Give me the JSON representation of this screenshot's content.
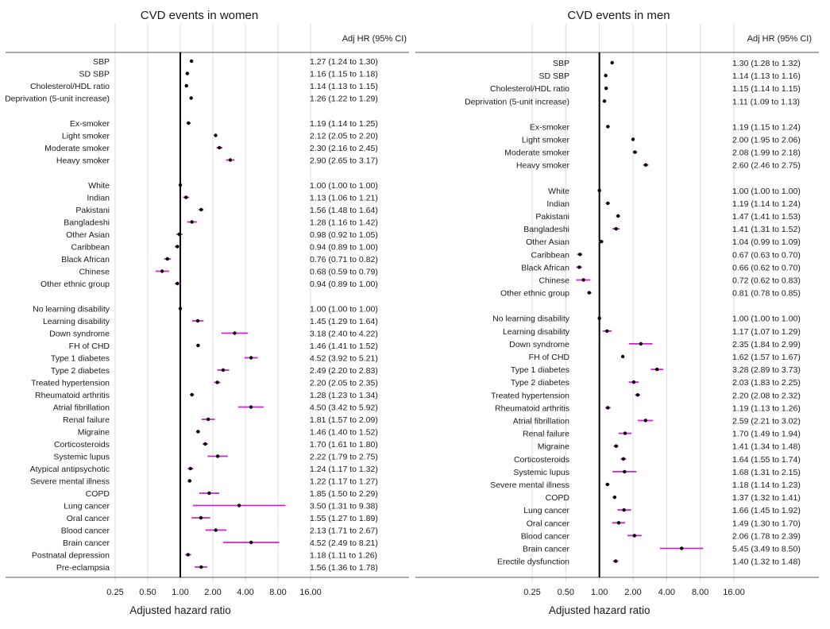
{
  "colors": {
    "ci": "#d21fd2",
    "point": "#000000",
    "reference": "#000000",
    "grid": "#dcdcdc",
    "frame": "#555555"
  },
  "chart_data": [
    {
      "type": "forest",
      "title": "CVD events in women",
      "ci_header": "Adj HR (95% CI)",
      "xlabel": "Adjusted hazard ratio",
      "x_scale": "log2",
      "xlim": [
        0.25,
        16
      ],
      "xticks": [
        "0.25",
        "0.50",
        "1.00",
        "2.00",
        "4.00",
        "8.00",
        "16.00"
      ],
      "xtick_values": [
        0.25,
        0.5,
        1,
        2,
        4,
        8,
        16
      ],
      "reference_line": 1,
      "grid": "vertical",
      "groups": [
        {
          "rows": [
            {
              "label": "SBP",
              "hr": 1.27,
              "lo": 1.24,
              "hi": 1.3,
              "ci_text": "1.27 (1.24 to 1.30)"
            },
            {
              "label": "SD SBP",
              "hr": 1.16,
              "lo": 1.15,
              "hi": 1.18,
              "ci_text": "1.16 (1.15 to 1.18)"
            },
            {
              "label": "Cholesterol/HDL ratio",
              "hr": 1.14,
              "lo": 1.13,
              "hi": 1.15,
              "ci_text": "1.14 (1.13 to 1.15)"
            },
            {
              "label": "Deprivation (5-unit increase)",
              "hr": 1.26,
              "lo": 1.22,
              "hi": 1.29,
              "ci_text": "1.26 (1.22 to 1.29)"
            }
          ]
        },
        {
          "rows": [
            {
              "label": "Ex-smoker",
              "hr": 1.19,
              "lo": 1.14,
              "hi": 1.25,
              "ci_text": "1.19 (1.14 to 1.25)"
            },
            {
              "label": "Light smoker",
              "hr": 2.12,
              "lo": 2.05,
              "hi": 2.2,
              "ci_text": "2.12 (2.05 to 2.20)"
            },
            {
              "label": "Moderate smoker",
              "hr": 2.3,
              "lo": 2.16,
              "hi": 2.45,
              "ci_text": "2.30 (2.16 to 2.45)"
            },
            {
              "label": "Heavy smoker",
              "hr": 2.9,
              "lo": 2.65,
              "hi": 3.17,
              "ci_text": "2.90 (2.65 to 3.17)"
            }
          ]
        },
        {
          "rows": [
            {
              "label": "White",
              "hr": 1.0,
              "lo": 1.0,
              "hi": 1.0,
              "ci_text": "1.00 (1.00 to 1.00)"
            },
            {
              "label": "Indian",
              "hr": 1.13,
              "lo": 1.06,
              "hi": 1.21,
              "ci_text": "1.13 (1.06 to 1.21)"
            },
            {
              "label": "Pakistani",
              "hr": 1.56,
              "lo": 1.48,
              "hi": 1.64,
              "ci_text": "1.56 (1.48 to 1.64)"
            },
            {
              "label": "Bangladeshi",
              "hr": 1.28,
              "lo": 1.16,
              "hi": 1.42,
              "ci_text": "1.28 (1.16 to 1.42)"
            },
            {
              "label": "Other Asian",
              "hr": 0.98,
              "lo": 0.92,
              "hi": 1.05,
              "ci_text": "0.98 (0.92 to 1.05)"
            },
            {
              "label": "Caribbean",
              "hr": 0.94,
              "lo": 0.89,
              "hi": 1.0,
              "ci_text": "0.94 (0.89 to 1.00)"
            },
            {
              "label": "Black African",
              "hr": 0.76,
              "lo": 0.71,
              "hi": 0.82,
              "ci_text": "0.76 (0.71 to 0.82)"
            },
            {
              "label": "Chinese",
              "hr": 0.68,
              "lo": 0.59,
              "hi": 0.79,
              "ci_text": "0.68 (0.59 to 0.79)"
            },
            {
              "label": "Other ethnic group",
              "hr": 0.94,
              "lo": 0.89,
              "hi": 1.0,
              "ci_text": "0.94 (0.89 to 1.00)"
            }
          ]
        },
        {
          "rows": [
            {
              "label": "No learning disability",
              "hr": 1.0,
              "lo": 1.0,
              "hi": 1.0,
              "ci_text": "1.00 (1.00 to 1.00)"
            },
            {
              "label": "Learning disability",
              "hr": 1.45,
              "lo": 1.29,
              "hi": 1.64,
              "ci_text": "1.45 (1.29 to 1.64)"
            },
            {
              "label": "Down syndrome",
              "hr": 3.18,
              "lo": 2.4,
              "hi": 4.22,
              "ci_text": "3.18 (2.40 to 4.22)"
            },
            {
              "label": "FH of CHD",
              "hr": 1.46,
              "lo": 1.41,
              "hi": 1.52,
              "ci_text": "1.46 (1.41 to 1.52)"
            },
            {
              "label": "Type 1 diabetes",
              "hr": 4.52,
              "lo": 3.92,
              "hi": 5.21,
              "ci_text": "4.52 (3.92 to 5.21)"
            },
            {
              "label": "Type 2 diabetes",
              "hr": 2.49,
              "lo": 2.2,
              "hi": 2.83,
              "ci_text": "2.49 (2.20 to 2.83)"
            },
            {
              "label": "Treated hypertension",
              "hr": 2.2,
              "lo": 2.05,
              "hi": 2.35,
              "ci_text": "2.20 (2.05 to 2.35)"
            },
            {
              "label": "Rheumatoid arthritis",
              "hr": 1.28,
              "lo": 1.23,
              "hi": 1.34,
              "ci_text": "1.28 (1.23 to 1.34)"
            },
            {
              "label": "Atrial fibrillation",
              "hr": 4.5,
              "lo": 3.42,
              "hi": 5.92,
              "ci_text": "4.50 (3.42 to 5.92)"
            },
            {
              "label": "Renal failure",
              "hr": 1.81,
              "lo": 1.57,
              "hi": 2.09,
              "ci_text": "1.81 (1.57 to 2.09)"
            },
            {
              "label": "Migraine",
              "hr": 1.46,
              "lo": 1.4,
              "hi": 1.52,
              "ci_text": "1.46 (1.40 to 1.52)"
            },
            {
              "label": "Corticosteroids",
              "hr": 1.7,
              "lo": 1.61,
              "hi": 1.8,
              "ci_text": "1.70 (1.61 to 1.80)"
            },
            {
              "label": "Systemic lupus",
              "hr": 2.22,
              "lo": 1.79,
              "hi": 2.75,
              "ci_text": "2.22 (1.79 to 2.75)"
            },
            {
              "label": "Atypical antipsychotic",
              "hr": 1.24,
              "lo": 1.17,
              "hi": 1.32,
              "ci_text": "1.24 (1.17 to 1.32)"
            },
            {
              "label": "Severe mental illness",
              "hr": 1.22,
              "lo": 1.17,
              "hi": 1.27,
              "ci_text": "1.22 (1.17 to 1.27)"
            },
            {
              "label": "COPD",
              "hr": 1.85,
              "lo": 1.5,
              "hi": 2.29,
              "ci_text": "1.85 (1.50 to 2.29)"
            },
            {
              "label": "Lung cancer",
              "hr": 3.5,
              "lo": 1.31,
              "hi": 9.38,
              "ci_text": "3.50 (1.31 to 9.38)"
            },
            {
              "label": "Oral cancer",
              "hr": 1.55,
              "lo": 1.27,
              "hi": 1.89,
              "ci_text": "1.55 (1.27 to 1.89)"
            },
            {
              "label": "Blood cancer",
              "hr": 2.13,
              "lo": 1.71,
              "hi": 2.67,
              "ci_text": "2.13 (1.71 to 2.67)"
            },
            {
              "label": "Brain cancer",
              "hr": 4.52,
              "lo": 2.49,
              "hi": 8.21,
              "ci_text": "4.52 (2.49 to 8.21)"
            },
            {
              "label": "Postnatal depression",
              "hr": 1.18,
              "lo": 1.11,
              "hi": 1.26,
              "ci_text": "1.18 (1.11 to 1.26)"
            },
            {
              "label": "Pre-eclampsia",
              "hr": 1.56,
              "lo": 1.36,
              "hi": 1.78,
              "ci_text": "1.56 (1.36 to 1.78)"
            }
          ]
        }
      ]
    },
    {
      "type": "forest",
      "title": "CVD events in men",
      "ci_header": "Adj HR (95% CI)",
      "xlabel": "Adjusted hazard ratio",
      "x_scale": "log2",
      "xlim": [
        0.25,
        16
      ],
      "xticks": [
        "0.25",
        "0.50",
        "1.00",
        "2.00",
        "4.00",
        "8.00",
        "16.00"
      ],
      "xtick_values": [
        0.25,
        0.5,
        1,
        2,
        4,
        8,
        16
      ],
      "reference_line": 1,
      "grid": "vertical",
      "groups": [
        {
          "rows": [
            {
              "label": "SBP",
              "hr": 1.3,
              "lo": 1.28,
              "hi": 1.32,
              "ci_text": "1.30 (1.28 to 1.32)"
            },
            {
              "label": "SD SBP",
              "hr": 1.14,
              "lo": 1.13,
              "hi": 1.16,
              "ci_text": "1.14 (1.13 to 1.16)"
            },
            {
              "label": "Cholesterol/HDL ratio",
              "hr": 1.15,
              "lo": 1.14,
              "hi": 1.15,
              "ci_text": "1.15 (1.14 to 1.15)"
            },
            {
              "label": "Deprivation (5-unit increase)",
              "hr": 1.11,
              "lo": 1.09,
              "hi": 1.13,
              "ci_text": "1.11 (1.09 to 1.13)"
            }
          ]
        },
        {
          "rows": [
            {
              "label": "Ex-smoker",
              "hr": 1.19,
              "lo": 1.15,
              "hi": 1.24,
              "ci_text": "1.19 (1.15 to 1.24)"
            },
            {
              "label": "Light smoker",
              "hr": 2.0,
              "lo": 1.95,
              "hi": 2.06,
              "ci_text": "2.00 (1.95 to 2.06)"
            },
            {
              "label": "Moderate smoker",
              "hr": 2.08,
              "lo": 1.99,
              "hi": 2.18,
              "ci_text": "2.08 (1.99 to 2.18)"
            },
            {
              "label": "Heavy smoker",
              "hr": 2.6,
              "lo": 2.46,
              "hi": 2.75,
              "ci_text": "2.60 (2.46 to 2.75)"
            }
          ]
        },
        {
          "rows": [
            {
              "label": "White",
              "hr": 1.0,
              "lo": 1.0,
              "hi": 1.0,
              "ci_text": "1.00 (1.00 to 1.00)"
            },
            {
              "label": "Indian",
              "hr": 1.19,
              "lo": 1.14,
              "hi": 1.24,
              "ci_text": "1.19 (1.14 to 1.24)"
            },
            {
              "label": "Pakistani",
              "hr": 1.47,
              "lo": 1.41,
              "hi": 1.53,
              "ci_text": "1.47 (1.41 to 1.53)"
            },
            {
              "label": "Bangladeshi",
              "hr": 1.41,
              "lo": 1.31,
              "hi": 1.52,
              "ci_text": "1.41 (1.31 to 1.52)"
            },
            {
              "label": "Other Asian",
              "hr": 1.04,
              "lo": 0.99,
              "hi": 1.09,
              "ci_text": "1.04 (0.99 to 1.09)"
            },
            {
              "label": "Caribbean",
              "hr": 0.67,
              "lo": 0.63,
              "hi": 0.7,
              "ci_text": "0.67 (0.63 to 0.70)"
            },
            {
              "label": "Black African",
              "hr": 0.66,
              "lo": 0.62,
              "hi": 0.7,
              "ci_text": "0.66 (0.62 to 0.70)"
            },
            {
              "label": "Chinese",
              "hr": 0.72,
              "lo": 0.62,
              "hi": 0.83,
              "ci_text": "0.72 (0.62 to 0.83)"
            },
            {
              "label": "Other ethnic group",
              "hr": 0.81,
              "lo": 0.78,
              "hi": 0.85,
              "ci_text": "0.81 (0.78 to 0.85)"
            }
          ]
        },
        {
          "rows": [
            {
              "label": "No learning disability",
              "hr": 1.0,
              "lo": 1.0,
              "hi": 1.0,
              "ci_text": "1.00 (1.00 to 1.00)"
            },
            {
              "label": "Learning disability",
              "hr": 1.17,
              "lo": 1.07,
              "hi": 1.29,
              "ci_text": "1.17 (1.07 to 1.29)"
            },
            {
              "label": "Down syndrome",
              "hr": 2.35,
              "lo": 1.84,
              "hi": 2.99,
              "ci_text": "2.35 (1.84 to 2.99)"
            },
            {
              "label": "FH of CHD",
              "hr": 1.62,
              "lo": 1.57,
              "hi": 1.67,
              "ci_text": "1.62 (1.57 to 1.67)"
            },
            {
              "label": "Type 1 diabetes",
              "hr": 3.28,
              "lo": 2.89,
              "hi": 3.73,
              "ci_text": "3.28 (2.89 to 3.73)"
            },
            {
              "label": "Type 2 diabetes",
              "hr": 2.03,
              "lo": 1.83,
              "hi": 2.25,
              "ci_text": "2.03 (1.83 to 2.25)"
            },
            {
              "label": "Treated hypertension",
              "hr": 2.2,
              "lo": 2.08,
              "hi": 2.32,
              "ci_text": "2.20 (2.08 to 2.32)"
            },
            {
              "label": "Rheumatoid arthritis",
              "hr": 1.19,
              "lo": 1.13,
              "hi": 1.26,
              "ci_text": "1.19 (1.13 to 1.26)"
            },
            {
              "label": "Atrial fibrillation",
              "hr": 2.59,
              "lo": 2.21,
              "hi": 3.02,
              "ci_text": "2.59 (2.21 to 3.02)"
            },
            {
              "label": "Renal failure",
              "hr": 1.7,
              "lo": 1.49,
              "hi": 1.94,
              "ci_text": "1.70 (1.49 to 1.94)"
            },
            {
              "label": "Migraine",
              "hr": 1.41,
              "lo": 1.34,
              "hi": 1.48,
              "ci_text": "1.41 (1.34 to 1.48)"
            },
            {
              "label": "Corticosteroids",
              "hr": 1.64,
              "lo": 1.55,
              "hi": 1.74,
              "ci_text": "1.64 (1.55 to 1.74)"
            },
            {
              "label": "Systemic lupus",
              "hr": 1.68,
              "lo": 1.31,
              "hi": 2.15,
              "ci_text": "1.68 (1.31 to 2.15)"
            },
            {
              "label": "Severe mental illness",
              "hr": 1.18,
              "lo": 1.14,
              "hi": 1.23,
              "ci_text": "1.18 (1.14 to 1.23)"
            },
            {
              "label": "COPD",
              "hr": 1.37,
              "lo": 1.32,
              "hi": 1.41,
              "ci_text": "1.37 (1.32 to 1.41)"
            },
            {
              "label": "Lung cancer",
              "hr": 1.66,
              "lo": 1.45,
              "hi": 1.92,
              "ci_text": "1.66 (1.45 to 1.92)"
            },
            {
              "label": "Oral cancer",
              "hr": 1.49,
              "lo": 1.3,
              "hi": 1.7,
              "ci_text": "1.49 (1.30 to 1.70)"
            },
            {
              "label": "Blood cancer",
              "hr": 2.06,
              "lo": 1.78,
              "hi": 2.39,
              "ci_text": "2.06 (1.78 to 2.39)"
            },
            {
              "label": "Brain cancer",
              "hr": 5.45,
              "lo": 3.49,
              "hi": 8.5,
              "ci_text": "5.45 (3.49 to 8.50)"
            },
            {
              "label": "Erectile dysfunction",
              "hr": 1.4,
              "lo": 1.32,
              "hi": 1.48,
              "ci_text": "1.40 (1.32 to 1.48)"
            }
          ]
        }
      ]
    }
  ]
}
